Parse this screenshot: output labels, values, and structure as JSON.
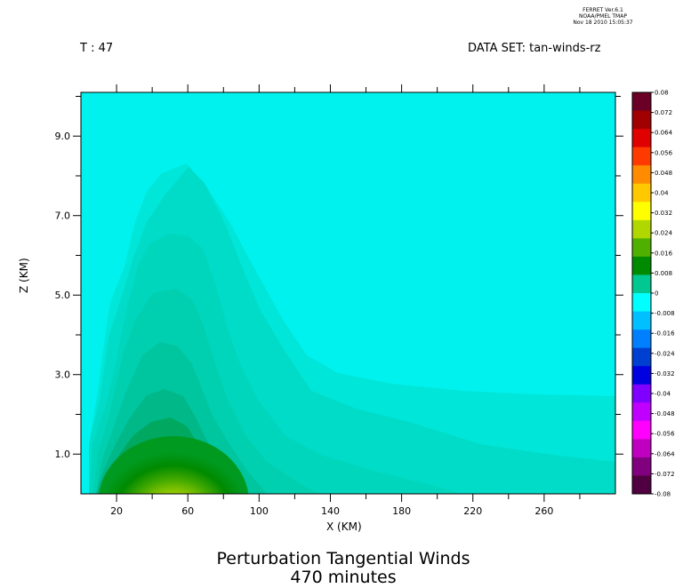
{
  "header": {
    "stamp_line1": "FERRET Ver.6.1",
    "stamp_line2": "NOAA/PMEL TMAP",
    "stamp_line3": "Nov 18 2010 15:05:37",
    "time_label": "T : 47",
    "dataset_label": "DATA SET: tan-winds-rz"
  },
  "chart_data": {
    "type": "heatmap",
    "title": "Perturbation Tangential Winds",
    "subtitle": "470 minutes",
    "xlabel": "X (KM)",
    "ylabel": "Z (KM)",
    "xlim": [
      0,
      300
    ],
    "ylim": [
      0,
      10.1
    ],
    "x_ticks": [
      20,
      60,
      100,
      140,
      180,
      220,
      260
    ],
    "y_ticks": [
      1.0,
      3.0,
      5.0,
      7.0,
      9.0
    ],
    "x_tick_labels": [
      "20",
      "60",
      "100",
      "140",
      "180",
      "220",
      "260"
    ],
    "y_tick_labels": [
      "1.0",
      "3.0",
      "5.0",
      "7.0",
      "9.0"
    ],
    "colorbar": {
      "min": -0.08,
      "max": 0.08,
      "labels": [
        "0.08",
        "0.072",
        "0.064",
        "0.056",
        "0.048",
        "0.04",
        "0.032",
        "0.024",
        "0.016",
        "0.008",
        "0",
        "-0.008",
        "-0.016",
        "-0.024",
        "-0.032",
        "-0.04",
        "-0.048",
        "-0.056",
        "-0.064",
        "-0.072",
        "-0.08"
      ],
      "colors": [
        "#6a0026",
        "#a00000",
        "#e00000",
        "#ff3a00",
        "#ff8c00",
        "#ffc800",
        "#ffff00",
        "#b0d800",
        "#50b000",
        "#008a00",
        "#00c890",
        "#00ffff",
        "#00c0ff",
        "#0080ff",
        "#0040d0",
        "#0000e0",
        "#8000ff",
        "#c000ff",
        "#ff00ff",
        "#c000c0",
        "#800080",
        "#500040"
      ]
    },
    "peak": {
      "x": 52,
      "z": 0.3,
      "value": 0.036
    },
    "background_value": 0.0
  }
}
